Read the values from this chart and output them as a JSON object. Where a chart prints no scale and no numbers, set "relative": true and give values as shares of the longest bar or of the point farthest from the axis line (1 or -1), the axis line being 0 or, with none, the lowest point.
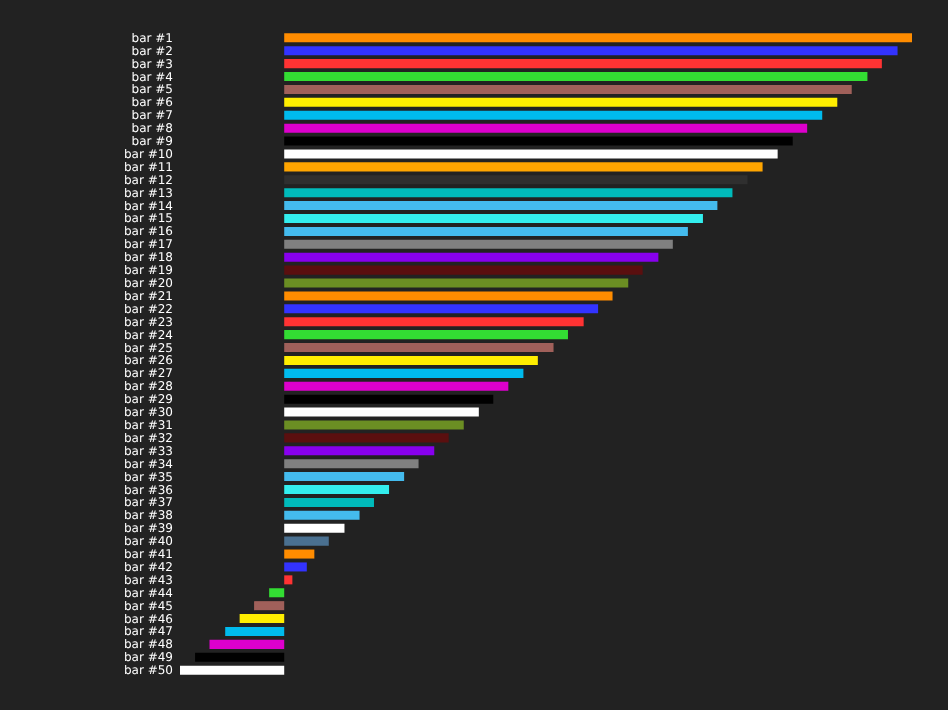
{
  "chart_data": {
    "type": "bar",
    "orientation": "horizontal",
    "relative": true,
    "categories": [
      "bar #1",
      "bar #2",
      "bar #3",
      "bar #4",
      "bar #5",
      "bar #6",
      "bar #7",
      "bar #8",
      "bar #9",
      "bar #10",
      "bar #11",
      "bar #12",
      "bar #13",
      "bar #14",
      "bar #15",
      "bar #16",
      "bar #17",
      "bar #18",
      "bar #19",
      "bar #20",
      "bar #21",
      "bar #22",
      "bar #23",
      "bar #24",
      "bar #25",
      "bar #26",
      "bar #27",
      "bar #28",
      "bar #29",
      "bar #30",
      "bar #31",
      "bar #32",
      "bar #33",
      "bar #34",
      "bar #35",
      "bar #36",
      "bar #37",
      "bar #38",
      "bar #39",
      "bar #40",
      "bar #41",
      "bar #42",
      "bar #43",
      "bar #44",
      "bar #45",
      "bar #46",
      "bar #47",
      "bar #48",
      "bar #49",
      "bar #50"
    ],
    "values": [
      1.0,
      0.977,
      0.952,
      0.929,
      0.904,
      0.881,
      0.857,
      0.833,
      0.81,
      0.786,
      0.762,
      0.738,
      0.714,
      0.69,
      0.667,
      0.643,
      0.619,
      0.596,
      0.571,
      0.548,
      0.523,
      0.5,
      0.477,
      0.452,
      0.429,
      0.404,
      0.381,
      0.357,
      0.333,
      0.31,
      0.286,
      0.262,
      0.239,
      0.214,
      0.191,
      0.167,
      0.143,
      0.12,
      0.096,
      0.071,
      0.048,
      0.036,
      0.013,
      -0.024,
      -0.048,
      -0.071,
      -0.094,
      -0.119,
      -0.142,
      -0.166
    ],
    "colors": [
      "#ff8c00",
      "#3333ff",
      "#ff3333",
      "#33dd33",
      "#a0605a",
      "#ffee00",
      "#00bbee",
      "#dd00cc",
      "#000000",
      "#ffffff",
      "#ffa500",
      "#2f2f2f",
      "#00bbbb",
      "#44bbee",
      "#33eeee",
      "#44bbee",
      "#808080",
      "#8800ee",
      "#5a0f0f",
      "#6b8e23",
      "#ff8c00",
      "#3333ff",
      "#ff3333",
      "#33dd33",
      "#a0605a",
      "#ffee00",
      "#00bbee",
      "#dd00cc",
      "#000000",
      "#ffffff",
      "#6b8e23",
      "#5a0f0f",
      "#8800ee",
      "#808080",
      "#44bbee",
      "#33eeee",
      "#00bbbb",
      "#44bbee",
      "#ffffff",
      "#4a7090",
      "#ff8c00",
      "#3333ff",
      "#ff3333",
      "#33dd33",
      "#a0605a",
      "#ffee00",
      "#00bbee",
      "#dd00cc",
      "#000000",
      "#ffffff"
    ]
  }
}
